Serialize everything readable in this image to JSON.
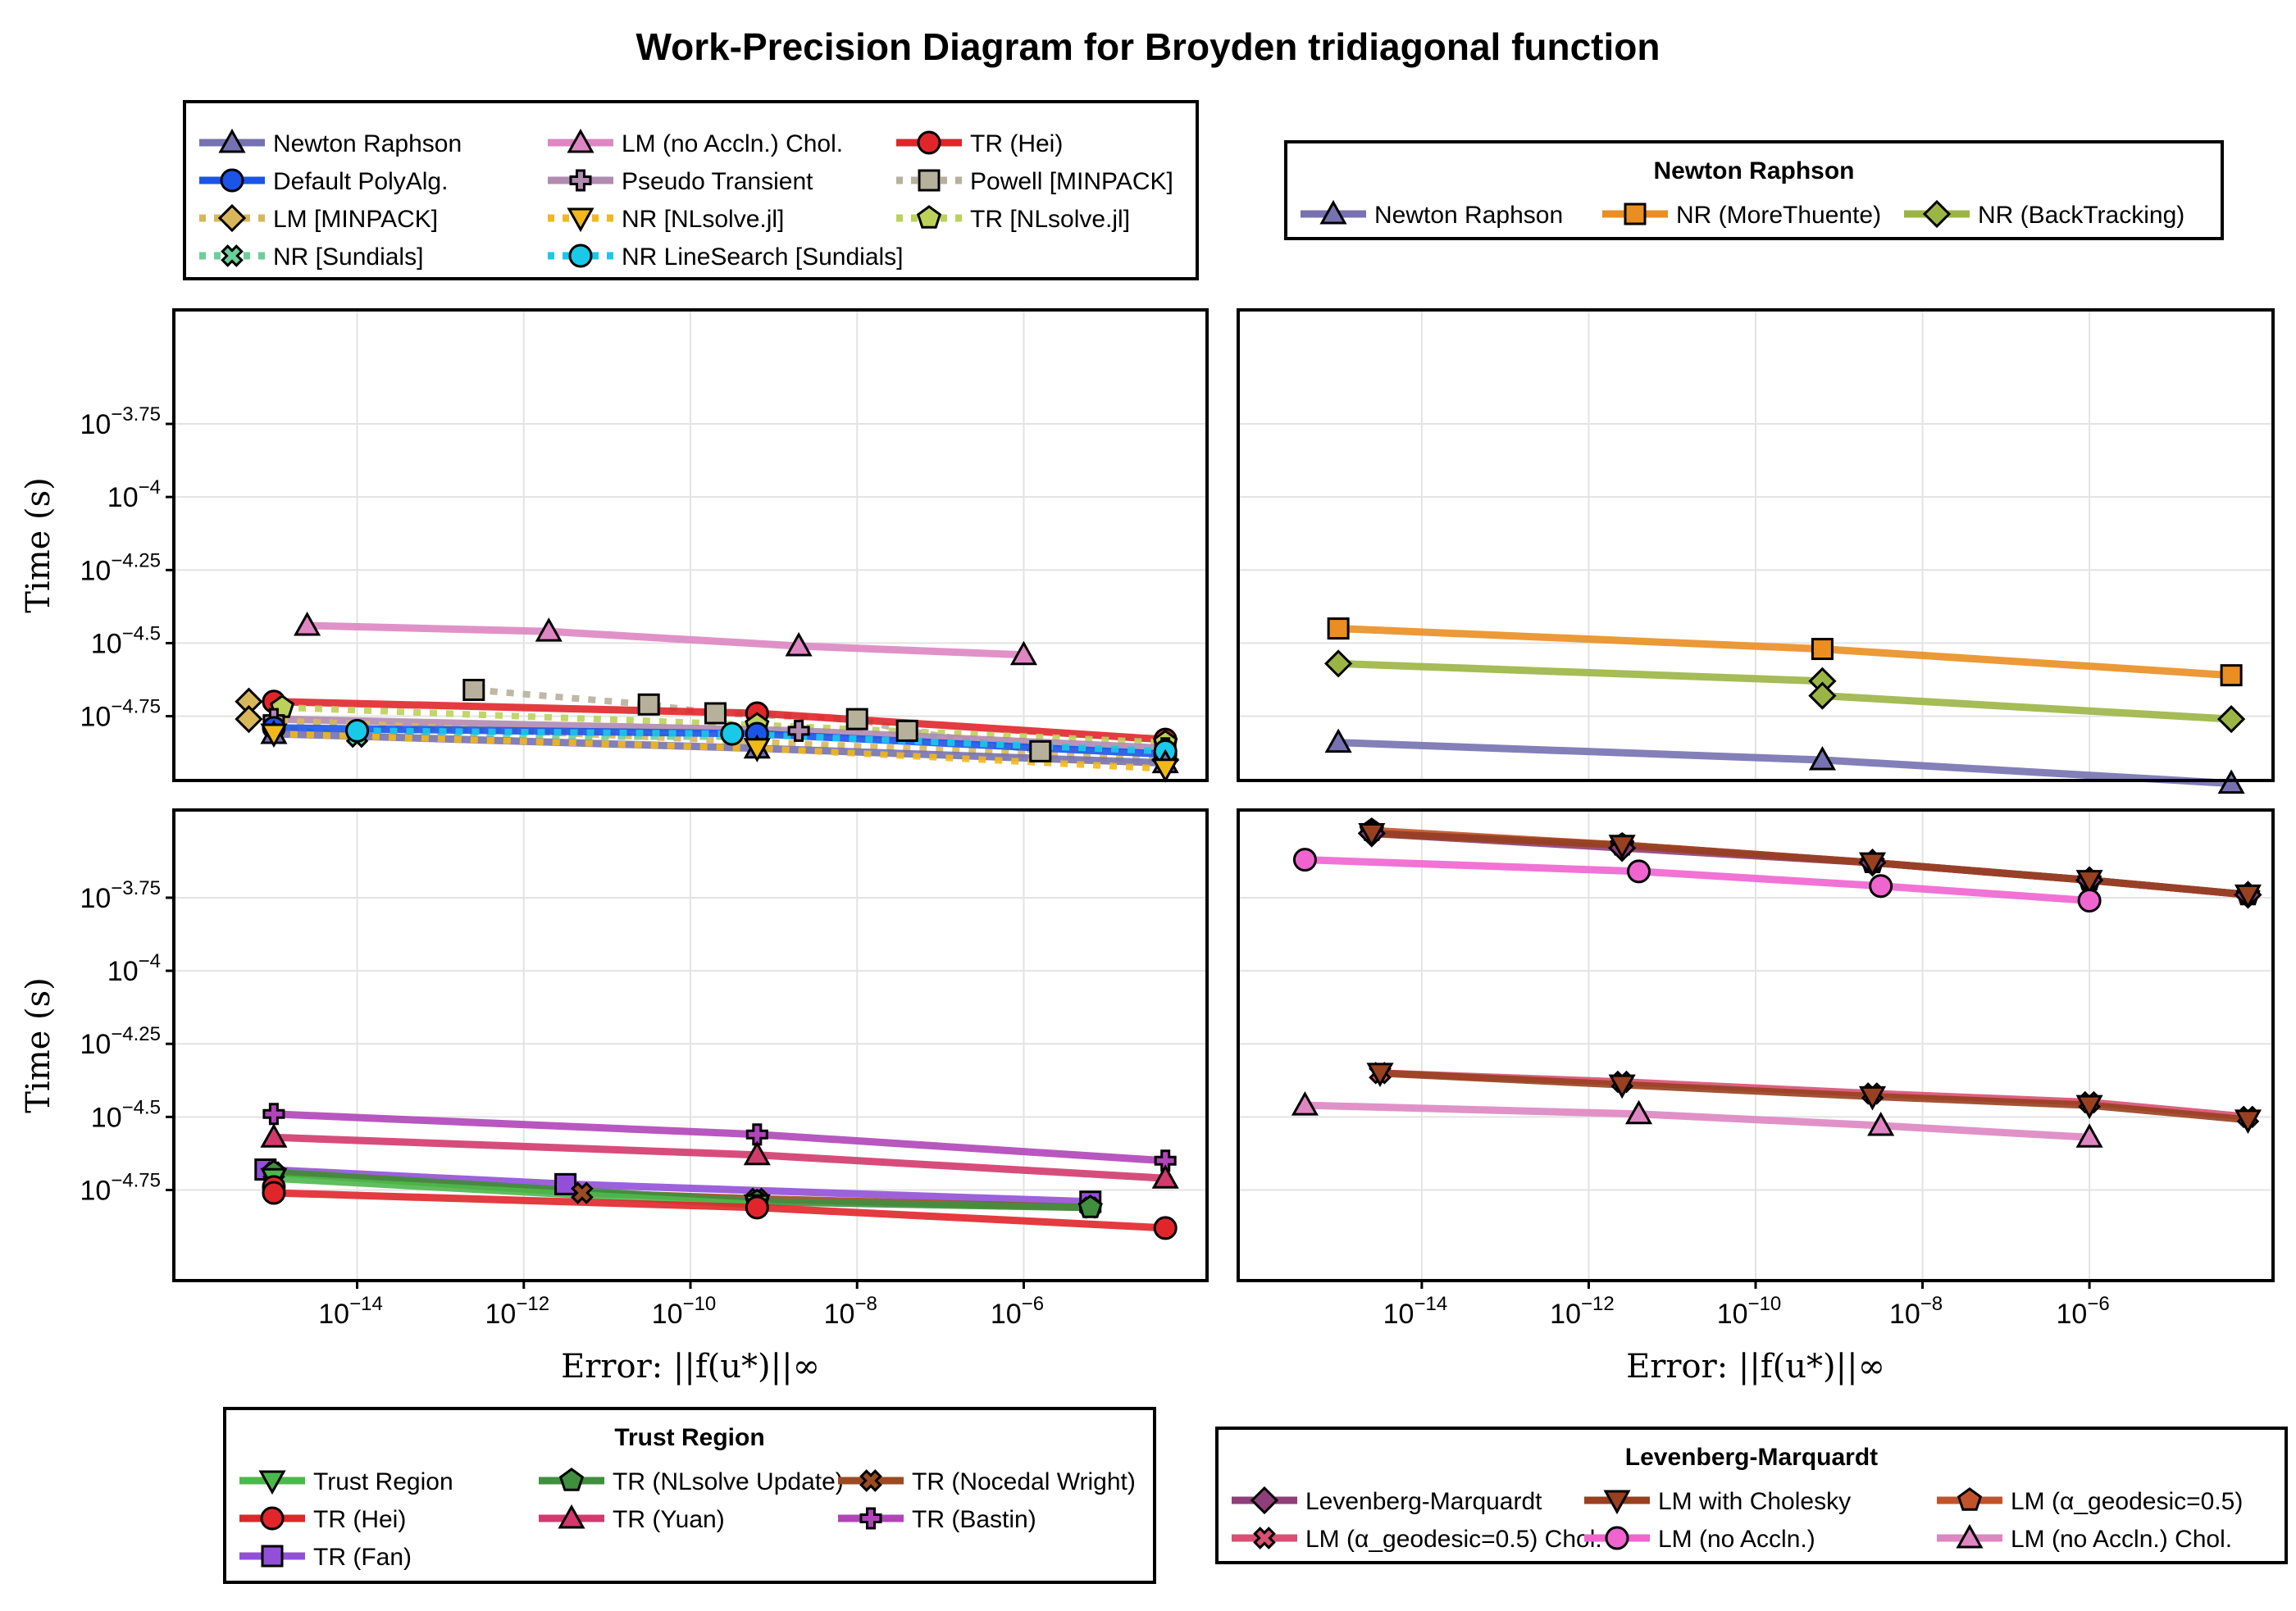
{
  "title": "Work-Precision Diagram for Broyden tridiagonal function",
  "axis_labels": {
    "ylabel": "Time (s)",
    "xlabel": "Error: ||f(u*)||∞"
  },
  "legends": {
    "main": {
      "title": "",
      "entries": [
        {
          "label": "Newton Raphson",
          "color": "#7671b0",
          "marker": "triangle",
          "dash": false
        },
        {
          "label": "LM (no Accln.) Chol.",
          "color": "#dd86c2",
          "marker": "triangle",
          "dash": false
        },
        {
          "label": "TR (Hei)",
          "color": "#e0262b",
          "marker": "circle",
          "dash": false
        },
        {
          "label": "Default PolyAlg.",
          "color": "#1c54e8",
          "marker": "circle",
          "dash": false
        },
        {
          "label": "Pseudo Transient",
          "color": "#b18bb0",
          "marker": "plus",
          "dash": false
        },
        {
          "label": "Powell [MINPACK]",
          "color": "#b7b09b",
          "marker": "square",
          "dash": true
        },
        {
          "label": "LM [MINPACK]",
          "color": "#d8b75b",
          "marker": "diamond",
          "dash": true
        },
        {
          "label": "NR [NLsolve.jl]",
          "color": "#f2b81a",
          "marker": "triangle-down",
          "dash": true
        },
        {
          "label": "TR [NLsolve.jl]",
          "color": "#bbd15a",
          "marker": "pentagon",
          "dash": true
        },
        {
          "label": "NR [Sundials]",
          "color": "#6bcf98",
          "marker": "cross",
          "dash": true
        },
        {
          "label": "NR LineSearch [Sundials]",
          "color": "#19c9e8",
          "marker": "circle",
          "dash": true
        }
      ]
    },
    "newton": {
      "title": "Newton Raphson",
      "entries": [
        {
          "label": "Newton Raphson",
          "color": "#7671b0",
          "marker": "triangle",
          "dash": false
        },
        {
          "label": "NR (MoreThuente)",
          "color": "#ea8e22",
          "marker": "square",
          "dash": false
        },
        {
          "label": "NR (BackTracking)",
          "color": "#9bb545",
          "marker": "diamond",
          "dash": false
        }
      ]
    },
    "trust": {
      "title": "Trust Region",
      "entries": [
        {
          "label": "Trust Region",
          "color": "#4cb84c",
          "marker": "triangle-down",
          "dash": false
        },
        {
          "label": "TR (NLsolve Update)",
          "color": "#3f8f3f",
          "marker": "pentagon",
          "dash": false
        },
        {
          "label": "TR (Nocedal Wright)",
          "color": "#9a4b22",
          "marker": "cross",
          "dash": false
        },
        {
          "label": "TR (Hei)",
          "color": "#e0262b",
          "marker": "circle",
          "dash": false
        },
        {
          "label": "TR (Yuan)",
          "color": "#d23a6e",
          "marker": "triangle",
          "dash": false
        },
        {
          "label": "TR (Bastin)",
          "color": "#b045b8",
          "marker": "plus",
          "dash": false
        },
        {
          "label": "TR (Fan)",
          "color": "#9250d8",
          "marker": "square",
          "dash": false
        }
      ]
    },
    "lm": {
      "title": "Levenberg-Marquardt",
      "entries": [
        {
          "label": "Levenberg-Marquardt",
          "color": "#8e3e78",
          "marker": "diamond",
          "dash": false
        },
        {
          "label": "LM with Cholesky",
          "color": "#98401f",
          "marker": "triangle-down",
          "dash": false
        },
        {
          "label": "LM (α_geodesic=0.5)",
          "color": "#c0532c",
          "marker": "pentagon",
          "dash": false
        },
        {
          "label": "LM (α_geodesic=0.5) Chol.",
          "color": "#d85072",
          "marker": "cross",
          "dash": false
        },
        {
          "label": "LM (no Accln.)",
          "color": "#f064d0",
          "marker": "circle",
          "dash": false
        },
        {
          "label": "LM (no Accln.) Chol.",
          "color": "#dd86c2",
          "marker": "triangle",
          "dash": false
        }
      ]
    }
  },
  "chart_data": [
    {
      "type": "line",
      "panel": "top-left",
      "xscale": "log10",
      "yscale": "log10",
      "xlim": [
        -16.2,
        -3.8
      ],
      "ylim": [
        -4.97,
        -3.36
      ],
      "xticks": [
        -14,
        -12,
        -10,
        -8,
        -6
      ],
      "yticks": [
        -3.75,
        -4,
        -4.25,
        -4.5,
        -4.75
      ],
      "series": [
        {
          "name": "LM (no Accln.) Chol.",
          "color": "#dd86c2",
          "marker": "triangle",
          "dash": false,
          "x": [
            -14.6,
            -11.7,
            -8.7,
            -6.0
          ],
          "y": [
            -4.44,
            -4.46,
            -4.51,
            -4.54
          ]
        },
        {
          "name": "Powell [MINPACK]",
          "color": "#b7b09b",
          "marker": "square",
          "dash": true,
          "x": [
            -12.6,
            -10.5,
            -9.7,
            -8.0,
            -7.4,
            -5.8
          ],
          "y": [
            -4.66,
            -4.71,
            -4.74,
            -4.76,
            -4.8,
            -4.87
          ]
        },
        {
          "name": "TR (Hei)",
          "color": "#e0262b",
          "marker": "circle",
          "dash": false,
          "x": [
            -15.0,
            -9.2,
            -4.3
          ],
          "y": [
            -4.7,
            -4.74,
            -4.83
          ]
        },
        {
          "name": "TR [NLsolve.jl]",
          "color": "#bbd15a",
          "marker": "pentagon",
          "dash": true,
          "x": [
            -14.9,
            -9.2,
            -4.3
          ],
          "y": [
            -4.72,
            -4.78,
            -4.84
          ]
        },
        {
          "name": "Pseudo Transient",
          "color": "#b18bb0",
          "marker": "plus",
          "dash": false,
          "x": [
            -15.0,
            -8.7,
            -4.3
          ],
          "y": [
            -4.76,
            -4.8,
            -4.86
          ]
        },
        {
          "name": "LM [MINPACK]",
          "color": "#d8b75b",
          "marker": "diamond",
          "dash": true,
          "x": [
            -15.3,
            -15.3,
            -4.3
          ],
          "y": [
            -4.7,
            -4.76,
            -4.9
          ]
        },
        {
          "name": "NR [Sundials]",
          "color": "#6bcf98",
          "marker": "cross",
          "dash": true,
          "x": [
            -15.0,
            -14.0,
            -9.2
          ],
          "y": [
            -4.79,
            -4.82,
            -4.82
          ]
        },
        {
          "name": "Default PolyAlg.",
          "color": "#1c54e8",
          "marker": "circle",
          "dash": false,
          "x": [
            -15.0,
            -9.2,
            -4.3
          ],
          "y": [
            -4.79,
            -4.81,
            -4.88
          ]
        },
        {
          "name": "NR LineSearch [Sundials]",
          "color": "#19c9e8",
          "marker": "circle",
          "dash": true,
          "x": [
            -14.0,
            -9.5,
            -4.3
          ],
          "y": [
            -4.8,
            -4.81,
            -4.87
          ]
        },
        {
          "name": "Newton Raphson",
          "color": "#7671b0",
          "marker": "triangle",
          "dash": false,
          "x": [
            -15.0,
            -9.2,
            -4.3
          ],
          "y": [
            -4.81,
            -4.86,
            -4.91
          ]
        },
        {
          "name": "NR [NLsolve.jl]",
          "color": "#f2b81a",
          "marker": "triangle-down",
          "dash": true,
          "x": [
            -15.0,
            -9.2,
            -4.3
          ],
          "y": [
            -4.81,
            -4.86,
            -4.93
          ]
        }
      ]
    },
    {
      "type": "line",
      "panel": "top-right",
      "xscale": "log10",
      "yscale": "log10",
      "xlim": [
        -16.2,
        -3.8
      ],
      "ylim": [
        -4.97,
        -3.36
      ],
      "xticks": [
        -14,
        -12,
        -10,
        -8,
        -6
      ],
      "yticks": [
        -3.75,
        -4,
        -4.25,
        -4.5,
        -4.75
      ],
      "series": [
        {
          "name": "NR (MoreThuente)",
          "color": "#ea8e22",
          "marker": "square",
          "dash": false,
          "x": [
            -15.0,
            -9.2,
            -4.3
          ],
          "y": [
            -4.45,
            -4.52,
            -4.61
          ]
        },
        {
          "name": "NR (BackTracking)",
          "color": "#9bb545",
          "marker": "diamond",
          "dash": false,
          "x": [
            -15.0,
            -9.2,
            -9.2,
            -4.3
          ],
          "y": [
            -4.57,
            -4.63,
            -4.68,
            -4.76
          ]
        },
        {
          "name": "Newton Raphson",
          "color": "#7671b0",
          "marker": "triangle",
          "dash": false,
          "x": [
            -15.0,
            -9.2,
            -4.3
          ],
          "y": [
            -4.84,
            -4.9,
            -4.98
          ]
        }
      ]
    },
    {
      "type": "line",
      "panel": "bottom-left",
      "xscale": "log10",
      "yscale": "log10",
      "xlim": [
        -16.2,
        -3.8
      ],
      "ylim": [
        -5.06,
        -3.45
      ],
      "xticks": [
        -14,
        -12,
        -10,
        -8,
        -6
      ],
      "yticks": [
        -3.75,
        -4,
        -4.25,
        -4.5,
        -4.75
      ],
      "series": [
        {
          "name": "TR (Bastin)",
          "color": "#b045b8",
          "marker": "plus",
          "dash": false,
          "x": [
            -15.0,
            -9.2,
            -4.3
          ],
          "y": [
            -4.49,
            -4.56,
            -4.65
          ]
        },
        {
          "name": "TR (Yuan)",
          "color": "#d23a6e",
          "marker": "triangle",
          "dash": false,
          "x": [
            -15.0,
            -9.2,
            -4.3
          ],
          "y": [
            -4.57,
            -4.63,
            -4.71
          ]
        },
        {
          "name": "TR (Fan)",
          "color": "#9250d8",
          "marker": "square",
          "dash": false,
          "x": [
            -15.1,
            -11.5,
            -5.2
          ],
          "y": [
            -4.68,
            -4.73,
            -4.79
          ]
        },
        {
          "name": "TR (Nocedal Wright)",
          "color": "#9a4b22",
          "marker": "cross",
          "dash": false,
          "x": [
            -15.0,
            -11.3,
            -9.2,
            -5.2
          ],
          "y": [
            -4.69,
            -4.76,
            -4.78,
            -4.81
          ]
        },
        {
          "name": "TR (NLsolve Update)",
          "color": "#3f8f3f",
          "marker": "pentagon",
          "dash": false,
          "x": [
            -15.0,
            -9.2,
            -5.2
          ],
          "y": [
            -4.69,
            -4.79,
            -4.81
          ]
        },
        {
          "name": "Trust Region",
          "color": "#4cb84c",
          "marker": "triangle-down",
          "dash": false,
          "x": [
            -15.0,
            -9.2
          ],
          "y": [
            -4.71,
            -4.8
          ]
        },
        {
          "name": "TR (Hei)",
          "color": "#e0262b",
          "marker": "circle",
          "dash": false,
          "x": [
            -15.0,
            -15.0,
            -9.2,
            -4.3
          ],
          "y": [
            -4.74,
            -4.76,
            -4.81,
            -4.88
          ]
        }
      ]
    },
    {
      "type": "line",
      "panel": "bottom-right",
      "xscale": "log10",
      "yscale": "log10",
      "xlim": [
        -16.2,
        -3.8
      ],
      "ylim": [
        -5.06,
        -3.45
      ],
      "xticks": [
        -14,
        -12,
        -10,
        -8,
        -6
      ],
      "yticks": [
        -3.75,
        -4,
        -4.25,
        -4.5,
        -4.75
      ],
      "series": [
        {
          "name": "LM (α_geodesic=0.5)",
          "color": "#c0532c",
          "marker": "pentagon",
          "dash": false,
          "x": [
            -14.6,
            -11.6,
            -8.6,
            -6.0,
            -4.1
          ],
          "y": [
            -3.52,
            -3.57,
            -3.63,
            -3.69,
            -3.74
          ]
        },
        {
          "name": "Levenberg-Marquardt",
          "color": "#8e3e78",
          "marker": "diamond",
          "dash": false,
          "x": [
            -14.6,
            -11.6,
            -8.6,
            -6.0,
            -4.1
          ],
          "y": [
            -3.53,
            -3.58,
            -3.63,
            -3.69,
            -3.74
          ]
        },
        {
          "name": "LM with Cholesky",
          "color": "#98401f",
          "marker": "triangle-down",
          "dash": false,
          "x": [
            -14.6,
            -11.6,
            -8.6,
            -6.0,
            -4.1
          ],
          "y": [
            -3.53,
            -3.57,
            -3.63,
            -3.69,
            -3.74
          ]
        },
        {
          "name": "LM (no Accln.)",
          "color": "#f064d0",
          "marker": "circle",
          "dash": false,
          "x": [
            -15.4,
            -11.4,
            -8.5,
            -6.0
          ],
          "y": [
            -3.62,
            -3.66,
            -3.71,
            -3.76
          ]
        },
        {
          "name": "LM (α_geodesic=0.5) Chol.",
          "color": "#d85072",
          "marker": "cross",
          "dash": false,
          "x": [
            -14.5,
            -11.6,
            -8.6,
            -6.0,
            -4.1
          ],
          "y": [
            -4.35,
            -4.38,
            -4.42,
            -4.45,
            -4.5
          ]
        },
        {
          "name": "LM with Cholesky (chol)",
          "color": "#98401f",
          "marker": "triangle-down",
          "dash": false,
          "x": [
            -14.5,
            -11.6,
            -8.6,
            -6.0,
            -4.1
          ],
          "y": [
            -4.35,
            -4.39,
            -4.43,
            -4.46,
            -4.51
          ]
        },
        {
          "name": "LM (no Accln.) Chol.",
          "color": "#dd86c2",
          "marker": "triangle",
          "dash": false,
          "x": [
            -15.4,
            -11.4,
            -8.5,
            -6.0
          ],
          "y": [
            -4.46,
            -4.49,
            -4.53,
            -4.57
          ]
        }
      ]
    }
  ]
}
